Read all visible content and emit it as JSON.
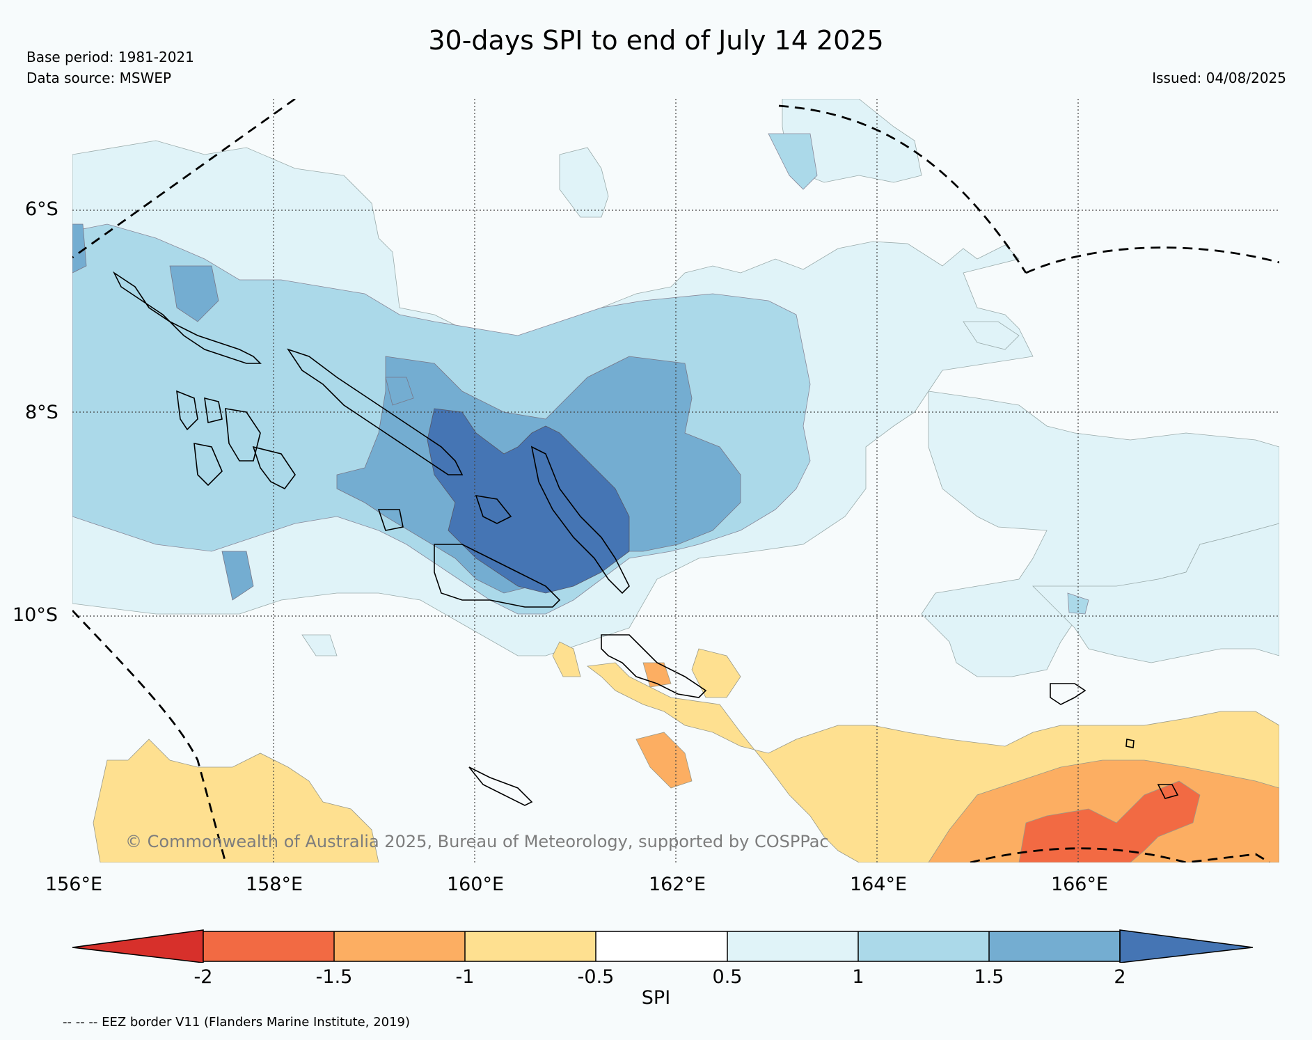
{
  "title": "30-days SPI to end of July 14 2025",
  "base_period": "Base period: 1981-2021",
  "data_source": "Data source: MSWEP",
  "issued": "Issued: 04/08/2025",
  "copyright": "© Commonwealth of Australia 2025, Bureau of Meteorology, supported by COSPPac",
  "map": {
    "lon_range": [
      156,
      168
    ],
    "lat_range": [
      -12.4,
      -5.0
    ],
    "lat_ticks": [
      "6°S",
      "8°S",
      "10°S"
    ],
    "lon_ticks": [
      "156°E",
      "158°E",
      "160°E",
      "162°E",
      "164°E",
      "166°E"
    ]
  },
  "colorbar": {
    "title": "SPI",
    "tick_labels": [
      "-2",
      "-1.5",
      "-1",
      "-0.5",
      "0.5",
      "1",
      "1.5",
      "2"
    ],
    "colors": {
      "lt_-2": "#d7302b",
      "-2_-1.5": "#f26a43",
      "-1.5_-1": "#fcae62",
      "-1_-0.5": "#fee090",
      "-0.5_0.5": "#ffffff",
      "0.5_1": "#e0f3f8",
      "1_1.5": "#abd9e9",
      "1.5_2": "#74add1",
      "gt_2": "#4575b4"
    }
  },
  "eez_note": "-- -- -- EEZ border V11 (Flanders Marine Institute, 2019)"
}
